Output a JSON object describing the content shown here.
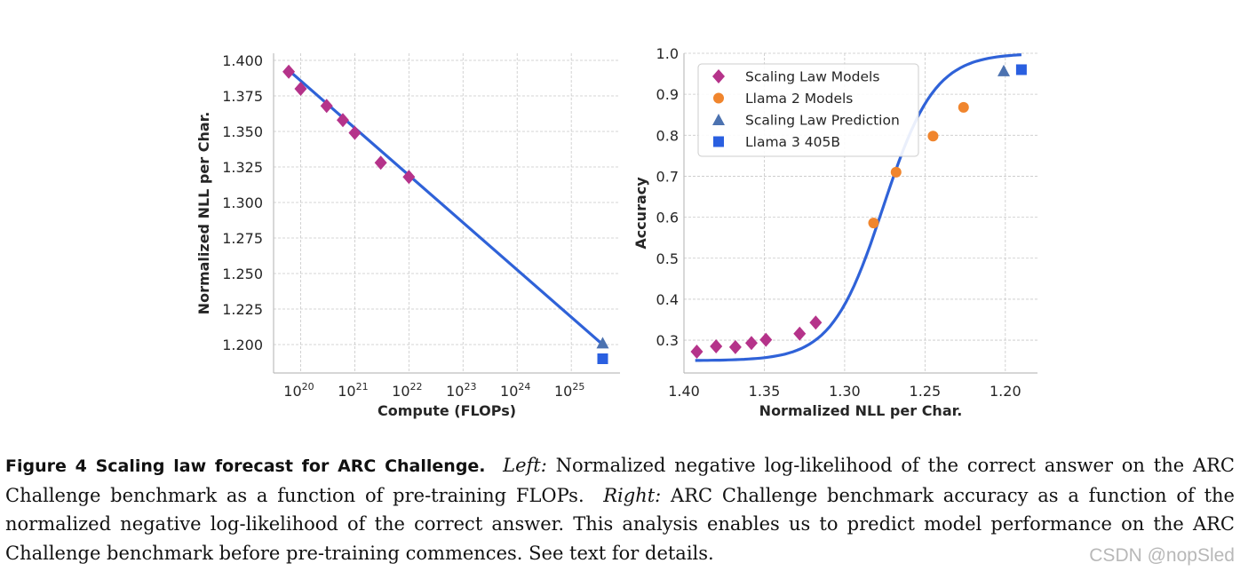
{
  "chart_data": [
    {
      "type": "scatter",
      "panel": "left",
      "xlabel": "Compute (FLOPs)",
      "ylabel": "Normalized NLL per Char.",
      "xscale": "log",
      "xlim_log10": [
        19.5,
        25.9
      ],
      "ylim": [
        1.18,
        1.405
      ],
      "x_tick_exponents": [
        "20",
        "21",
        "22",
        "23",
        "24",
        "25"
      ],
      "x_tick_values_log10": [
        20,
        21,
        22,
        23,
        24,
        25
      ],
      "y_ticks": [
        "1.400",
        "1.375",
        "1.350",
        "1.325",
        "1.300",
        "1.275",
        "1.250",
        "1.225",
        "1.200"
      ],
      "y_tick_values": [
        1.4,
        1.375,
        1.35,
        1.325,
        1.3,
        1.275,
        1.25,
        1.225,
        1.2
      ],
      "series": [
        {
          "name": "Scaling Law Models",
          "marker": "diamond",
          "color": "#b5338a",
          "points": [
            [
              19.78,
              1.392
            ],
            [
              20.0,
              1.38
            ],
            [
              20.48,
              1.368
            ],
            [
              20.78,
              1.358
            ],
            [
              21.0,
              1.349
            ],
            [
              21.48,
              1.328
            ],
            [
              22.0,
              1.318
            ]
          ]
        },
        {
          "name": "Scaling Law Prediction",
          "marker": "triangle",
          "color": "#4c72b0",
          "points": [
            [
              25.58,
              1.201
            ]
          ]
        },
        {
          "name": "Llama 3 405B",
          "marker": "square",
          "color": "#2a5fe0",
          "points": [
            [
              25.58,
              1.19
            ]
          ]
        }
      ],
      "fit_line": {
        "color": "#2f62d8",
        "points": [
          [
            19.78,
            1.393
          ],
          [
            25.58,
            1.2
          ]
        ]
      }
    },
    {
      "type": "scatter",
      "panel": "right",
      "xlabel": "Normalized NLL per Char.",
      "ylabel": "Accuracy",
      "x_inverted": true,
      "xlim": [
        1.4,
        1.18
      ],
      "ylim": [
        0.22,
        1.0
      ],
      "x_ticks": [
        "1.40",
        "1.35",
        "1.30",
        "1.25",
        "1.20"
      ],
      "x_tick_values": [
        1.4,
        1.35,
        1.3,
        1.25,
        1.2
      ],
      "y_ticks": [
        "1.0",
        "0.9",
        "0.8",
        "0.7",
        "0.6",
        "0.5",
        "0.4",
        "0.3"
      ],
      "y_tick_values": [
        1.0,
        0.9,
        0.8,
        0.7,
        0.6,
        0.5,
        0.4,
        0.3
      ],
      "legend": [
        "Scaling Law Models",
        "Llama 2 Models",
        "Scaling Law Prediction",
        "Llama 3 405B"
      ],
      "legend_position": "upper-left",
      "series": [
        {
          "name": "Scaling Law Models",
          "marker": "diamond",
          "color": "#b5338a",
          "points": [
            [
              1.392,
              0.272
            ],
            [
              1.38,
              0.285
            ],
            [
              1.368,
              0.283
            ],
            [
              1.358,
              0.293
            ],
            [
              1.349,
              0.301
            ],
            [
              1.328,
              0.316
            ],
            [
              1.318,
              0.343
            ]
          ]
        },
        {
          "name": "Llama 2 Models",
          "marker": "circle",
          "color": "#f0852d",
          "points": [
            [
              1.282,
              0.586
            ],
            [
              1.268,
              0.71
            ],
            [
              1.245,
              0.798
            ],
            [
              1.226,
              0.868
            ]
          ]
        },
        {
          "name": "Scaling Law Prediction",
          "marker": "triangle",
          "color": "#4c72b0",
          "points": [
            [
              1.201,
              0.957
            ]
          ]
        },
        {
          "name": "Llama 3 405B",
          "marker": "square",
          "color": "#2a5fe0",
          "points": [
            [
              1.19,
              0.96
            ]
          ]
        }
      ],
      "fit_curve": {
        "color": "#2f62d8",
        "type": "sigmoid",
        "lower": 0.25,
        "upper": 1.0,
        "midpoint": 1.276,
        "scale": 0.016,
        "x_range": [
          1.393,
          1.19
        ]
      }
    }
  ],
  "caption": {
    "title": "Figure 4  Scaling law forecast for ARC Challenge.",
    "left_label": "Left:",
    "left_text": "Normalized negative log-likelihood of the correct answer on the ARC Challenge benchmark as a function of pre-training FLOPs.",
    "right_label": "Right:",
    "right_text": "ARC Challenge benchmark accuracy as a function of the normalized negative log-likelihood of the correct answer. This analysis enables us to predict model performance on the ARC Challenge benchmark before pre-training commences. See text for details."
  },
  "watermark": "CSDN @nopSled"
}
